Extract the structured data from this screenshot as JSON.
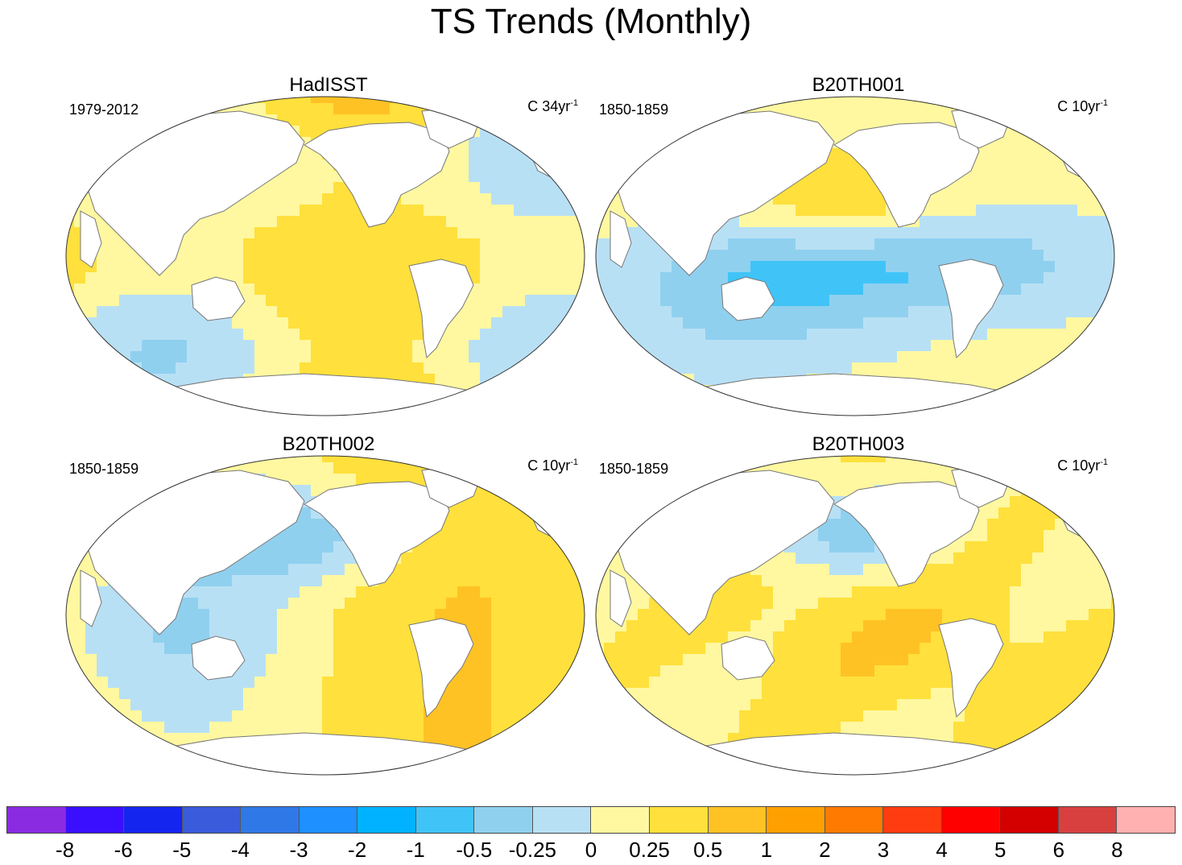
{
  "title": "TS Trends (Monthly)",
  "panels": [
    {
      "name": "HadISST",
      "period": "1979-2012",
      "units_prefix": "C 34yr",
      "units_sup": "-1"
    },
    {
      "name": "B20TH001",
      "period": "1850-1859",
      "units_prefix": "C 10yr",
      "units_sup": "-1"
    },
    {
      "name": "B20TH002",
      "period": "1850-1859",
      "units_prefix": "C 10yr",
      "units_sup": "-1"
    },
    {
      "name": "B20TH003",
      "period": "1850-1859",
      "units_prefix": "C 10yr",
      "units_sup": "-1"
    }
  ],
  "colorbar": {
    "colors": [
      "#8a2be2",
      "#3a0fff",
      "#1525f0",
      "#3a5bdc",
      "#2f78e8",
      "#1e90ff",
      "#00b2ff",
      "#40c4f8",
      "#90d0ef",
      "#b8e0f5",
      "#fff8a0",
      "#ffe03c",
      "#ffc225",
      "#ffa000",
      "#ff7a00",
      "#ff3c10",
      "#ff0000",
      "#d40000",
      "#d84040",
      "#ffb0b0"
    ],
    "tick_labels": [
      "-8",
      "-6",
      "-5",
      "-4",
      "-3",
      "-2",
      "-1",
      "-0.5",
      "-0.25",
      "0",
      "0.25",
      "0.5",
      "1",
      "2",
      "3",
      "4",
      "5",
      "6",
      "8"
    ]
  },
  "palette": {
    "land": "#ffffff",
    "coast": "#777777",
    "border": "#333333"
  }
}
